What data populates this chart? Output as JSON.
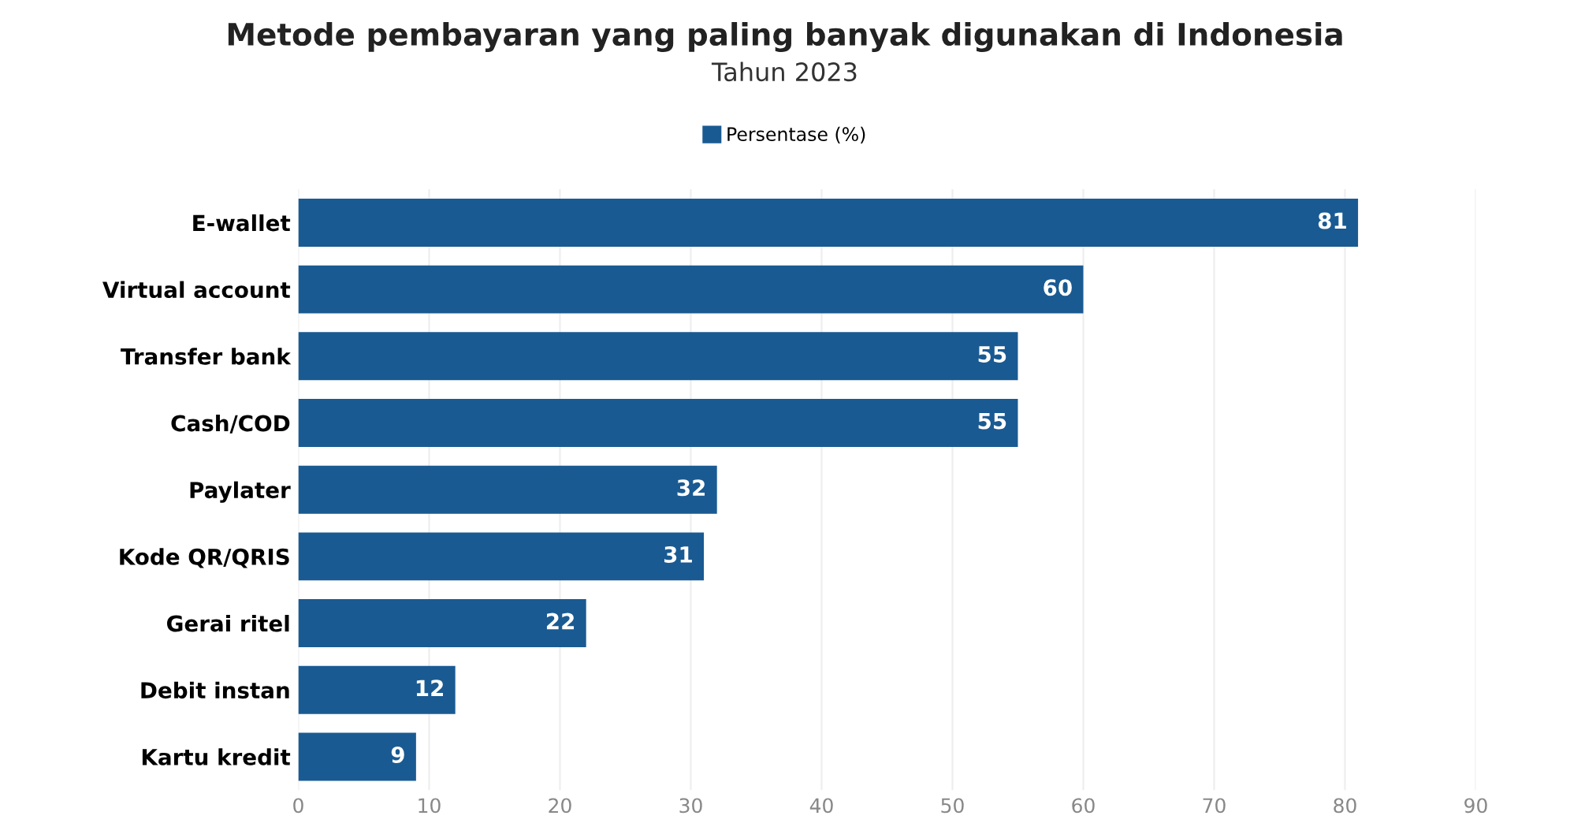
{
  "chart_data": {
    "type": "bar",
    "orientation": "horizontal",
    "title": "Metode pembayaran yang paling banyak digunakan di Indonesia",
    "subtitle": "Tahun 2023",
    "categories": [
      "E-wallet",
      "Virtual account",
      "Transfer bank",
      "Cash/COD",
      "Paylater",
      "Kode QR/QRIS",
      "Gerai ritel",
      "Debit instan",
      "Kartu kredit"
    ],
    "series": [
      {
        "name": "Persentase (%)",
        "color": "#1a5a92",
        "values": [
          81,
          60,
          55,
          55,
          32,
          31,
          22,
          12,
          9
        ]
      }
    ],
    "xlim": [
      0,
      90
    ],
    "xticks": [
      0,
      10,
      20,
      30,
      40,
      50,
      60,
      70,
      80,
      90
    ],
    "grid": "x",
    "legend": "top",
    "data_labels": true
  }
}
